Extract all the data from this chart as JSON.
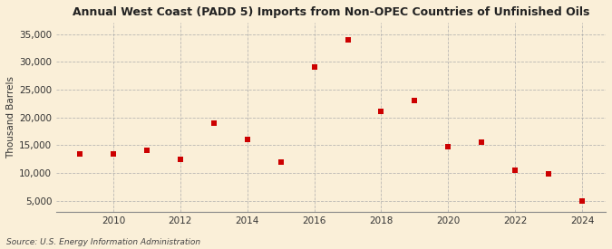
{
  "title": "Annual West Coast (PADD 5) Imports from Non-OPEC Countries of Unfinished Oils",
  "ylabel": "Thousand Barrels",
  "source": "Source: U.S. Energy Information Administration",
  "background_color": "#faefd8",
  "dot_color": "#cc0000",
  "grid_color": "#aaaaaa",
  "years": [
    2009,
    2010,
    2011,
    2012,
    2013,
    2014,
    2015,
    2016,
    2017,
    2018,
    2019,
    2020,
    2021,
    2022,
    2023,
    2024
  ],
  "values": [
    13500,
    13500,
    14000,
    12500,
    19000,
    16000,
    12000,
    29000,
    34000,
    21000,
    23000,
    14800,
    15500,
    10500,
    9800,
    5000
  ],
  "ylim": [
    3000,
    37000
  ],
  "yticks": [
    5000,
    10000,
    15000,
    20000,
    25000,
    30000,
    35000
  ],
  "xlim": [
    2008.3,
    2024.7
  ],
  "xticks": [
    2010,
    2012,
    2014,
    2016,
    2018,
    2020,
    2022,
    2024
  ]
}
